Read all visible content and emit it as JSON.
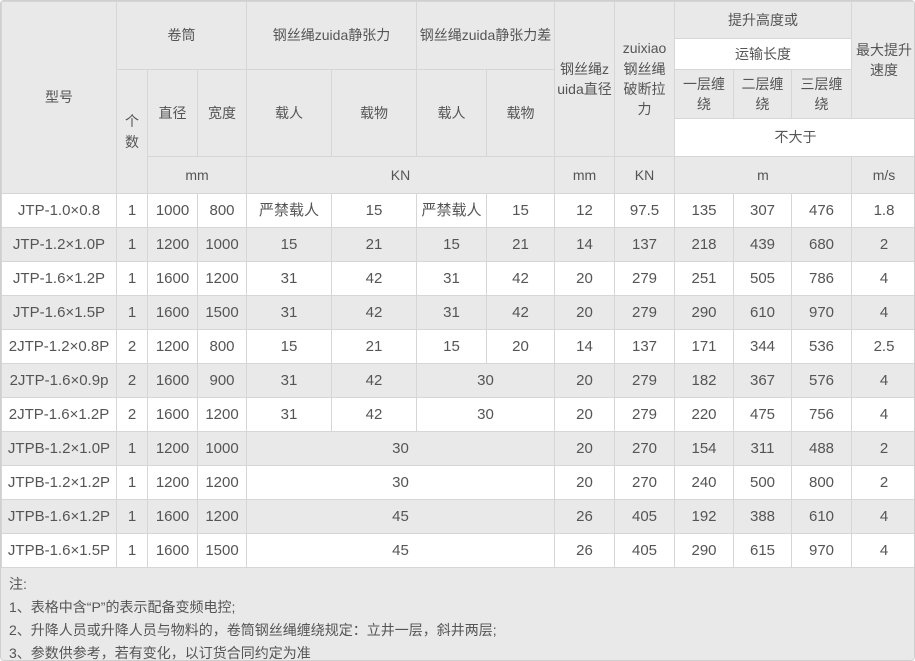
{
  "table": {
    "header": {
      "model": "型号",
      "drum_group": "卷筒",
      "static_tension_group": "钢丝绳zuida静张力",
      "static_tension_diff_group": "钢丝绳zuida静张力差",
      "rope_diameter": "钢丝绳zuida直径",
      "breaking_force": "zuixiao钢丝绳破断拉力",
      "lift_height_group": "提升高度或",
      "transport_length": "运输长度",
      "max_speed": "最大提升速度",
      "count": "个数",
      "diameter": "直径",
      "width": "宽度",
      "manned_tension": "载人",
      "goods_tension": "载物",
      "manned_diff": "载人",
      "goods_diff": "载物",
      "layer1": "一层缠绕",
      "layer2": "二层缠绕",
      "layer3": "三层缠绕",
      "not_greater_than": "不大于",
      "units": {
        "drum_mm": "mm",
        "tension_kn": "KN",
        "rope_mm": "mm",
        "force_kn": "KN",
        "length_m": "m",
        "speed_ms": "m/s"
      }
    },
    "rows": [
      {
        "model": "JTP-1.0×0.8",
        "cells": [
          {
            "t": "1"
          },
          {
            "t": "1000"
          },
          {
            "t": "800"
          },
          {
            "t": "严禁载人"
          },
          {
            "t": "15"
          },
          {
            "t": "严禁载人"
          },
          {
            "t": "15"
          },
          {
            "t": "12"
          },
          {
            "t": "97.5"
          },
          {
            "t": "135"
          },
          {
            "t": "307"
          },
          {
            "t": "476"
          },
          {
            "t": "1.8"
          }
        ]
      },
      {
        "model": "JTP-1.2×1.0P",
        "cells": [
          {
            "t": "1"
          },
          {
            "t": "1200"
          },
          {
            "t": "1000"
          },
          {
            "t": "15"
          },
          {
            "t": "21"
          },
          {
            "t": "15"
          },
          {
            "t": "21"
          },
          {
            "t": "14"
          },
          {
            "t": "137"
          },
          {
            "t": "218"
          },
          {
            "t": "439"
          },
          {
            "t": "680"
          },
          {
            "t": "2"
          }
        ]
      },
      {
        "model": "JTP-1.6×1.2P",
        "cells": [
          {
            "t": "1"
          },
          {
            "t": "1600"
          },
          {
            "t": "1200"
          },
          {
            "t": "31"
          },
          {
            "t": "42"
          },
          {
            "t": "31"
          },
          {
            "t": "42"
          },
          {
            "t": "20"
          },
          {
            "t": "279"
          },
          {
            "t": "251"
          },
          {
            "t": "505"
          },
          {
            "t": "786"
          },
          {
            "t": "4"
          }
        ]
      },
      {
        "model": "JTP-1.6×1.5P",
        "cells": [
          {
            "t": "1"
          },
          {
            "t": "1600"
          },
          {
            "t": "1500"
          },
          {
            "t": "31"
          },
          {
            "t": "42"
          },
          {
            "t": "31"
          },
          {
            "t": "42"
          },
          {
            "t": "20"
          },
          {
            "t": "279"
          },
          {
            "t": "290"
          },
          {
            "t": "610"
          },
          {
            "t": "970"
          },
          {
            "t": "4"
          }
        ]
      },
      {
        "model": "2JTP-1.2×0.8P",
        "cells": [
          {
            "t": "2"
          },
          {
            "t": "1200"
          },
          {
            "t": "800"
          },
          {
            "t": "15"
          },
          {
            "t": "21"
          },
          {
            "t": "15"
          },
          {
            "t": "20"
          },
          {
            "t": "14"
          },
          {
            "t": "137"
          },
          {
            "t": "171"
          },
          {
            "t": "344"
          },
          {
            "t": "536"
          },
          {
            "t": "2.5"
          }
        ]
      },
      {
        "model": "2JTP-1.6×0.9p",
        "cells": [
          {
            "t": "2"
          },
          {
            "t": "1600"
          },
          {
            "t": "900"
          },
          {
            "t": "31"
          },
          {
            "t": "42"
          },
          {
            "t": "30",
            "span": 2
          },
          {
            "t": "20"
          },
          {
            "t": "279"
          },
          {
            "t": "182"
          },
          {
            "t": "367"
          },
          {
            "t": "576"
          },
          {
            "t": "4"
          }
        ]
      },
      {
        "model": "2JTP-1.6×1.2P",
        "cells": [
          {
            "t": "2"
          },
          {
            "t": "1600"
          },
          {
            "t": "1200"
          },
          {
            "t": "31"
          },
          {
            "t": "42"
          },
          {
            "t": "30",
            "span": 2
          },
          {
            "t": "20"
          },
          {
            "t": "279"
          },
          {
            "t": "220"
          },
          {
            "t": "475"
          },
          {
            "t": "756"
          },
          {
            "t": "4"
          }
        ]
      },
      {
        "model": "JTPB-1.2×1.0P",
        "cells": [
          {
            "t": "1"
          },
          {
            "t": "1200"
          },
          {
            "t": "1000"
          },
          {
            "t": "30",
            "span": 4
          },
          {
            "t": "20"
          },
          {
            "t": "270"
          },
          {
            "t": "154"
          },
          {
            "t": "311"
          },
          {
            "t": "488"
          },
          {
            "t": "2"
          }
        ]
      },
      {
        "model": "JTPB-1.2×1.2P",
        "cells": [
          {
            "t": "1"
          },
          {
            "t": "1200"
          },
          {
            "t": "1200"
          },
          {
            "t": "30",
            "span": 4
          },
          {
            "t": "20"
          },
          {
            "t": "270"
          },
          {
            "t": "240"
          },
          {
            "t": "500"
          },
          {
            "t": "800"
          },
          {
            "t": "2"
          }
        ]
      },
      {
        "model": "JTPB-1.6×1.2P",
        "cells": [
          {
            "t": "1"
          },
          {
            "t": "1600"
          },
          {
            "t": "1200"
          },
          {
            "t": "45",
            "span": 4
          },
          {
            "t": "26"
          },
          {
            "t": "405"
          },
          {
            "t": "192"
          },
          {
            "t": "388"
          },
          {
            "t": "610"
          },
          {
            "t": "4"
          }
        ]
      },
      {
        "model": "JTPB-1.6×1.5P",
        "cells": [
          {
            "t": "1"
          },
          {
            "t": "1600"
          },
          {
            "t": "1500"
          },
          {
            "t": "45",
            "span": 4
          },
          {
            "t": "26"
          },
          {
            "t": "405"
          },
          {
            "t": "290"
          },
          {
            "t": "615"
          },
          {
            "t": "970"
          },
          {
            "t": "4"
          }
        ]
      }
    ]
  },
  "notes": {
    "title": "注:",
    "items": [
      "1、表格中含“P”的表示配备变频电控;",
      "2、升降人员或升降人员与物料的，卷筒钢丝绳缠绕规定：立井一层，斜井两层;",
      "3、参数供参考，若有变化，以订货合同约定为准"
    ]
  }
}
